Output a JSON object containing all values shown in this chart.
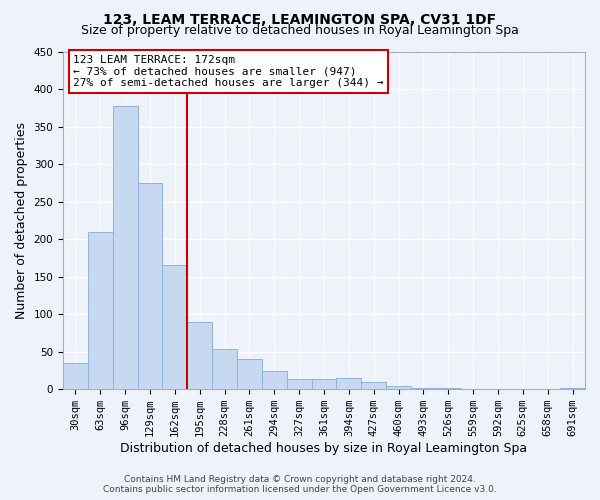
{
  "title": "123, LEAM TERRACE, LEAMINGTON SPA, CV31 1DF",
  "subtitle": "Size of property relative to detached houses in Royal Leamington Spa",
  "xlabel": "Distribution of detached houses by size in Royal Leamington Spa",
  "ylabel": "Number of detached properties",
  "footer_line1": "Contains HM Land Registry data © Crown copyright and database right 2024.",
  "footer_line2": "Contains public sector information licensed under the Open Government Licence v3.0.",
  "bar_labels": [
    "30sqm",
    "63sqm",
    "96sqm",
    "129sqm",
    "162sqm",
    "195sqm",
    "228sqm",
    "261sqm",
    "294sqm",
    "327sqm",
    "361sqm",
    "394sqm",
    "427sqm",
    "460sqm",
    "493sqm",
    "526sqm",
    "559sqm",
    "592sqm",
    "625sqm",
    "658sqm",
    "691sqm"
  ],
  "bar_values": [
    35,
    210,
    378,
    275,
    165,
    90,
    53,
    40,
    24,
    13,
    13,
    15,
    10,
    4,
    2,
    1,
    0,
    0,
    0,
    0,
    2
  ],
  "bar_color": "#c6d9f1",
  "bar_edge_color": "#8db3e2",
  "vline_x": 4.5,
  "vline_color": "#cc0000",
  "annotation_line1": "123 LEAM TERRACE: 172sqm",
  "annotation_line2": "← 73% of detached houses are smaller (947)",
  "annotation_line3": "27% of semi-detached houses are larger (344) →",
  "annotation_box_color": "#cc0000",
  "ylim": [
    0,
    450
  ],
  "yticks": [
    0,
    50,
    100,
    150,
    200,
    250,
    300,
    350,
    400,
    450
  ],
  "background_color": "#eef2fa",
  "grid_color": "#ffffff",
  "title_fontsize": 10,
  "subtitle_fontsize": 9,
  "axis_label_fontsize": 9,
  "tick_fontsize": 7.5,
  "footer_fontsize": 6.5,
  "annot_fontsize": 8
}
